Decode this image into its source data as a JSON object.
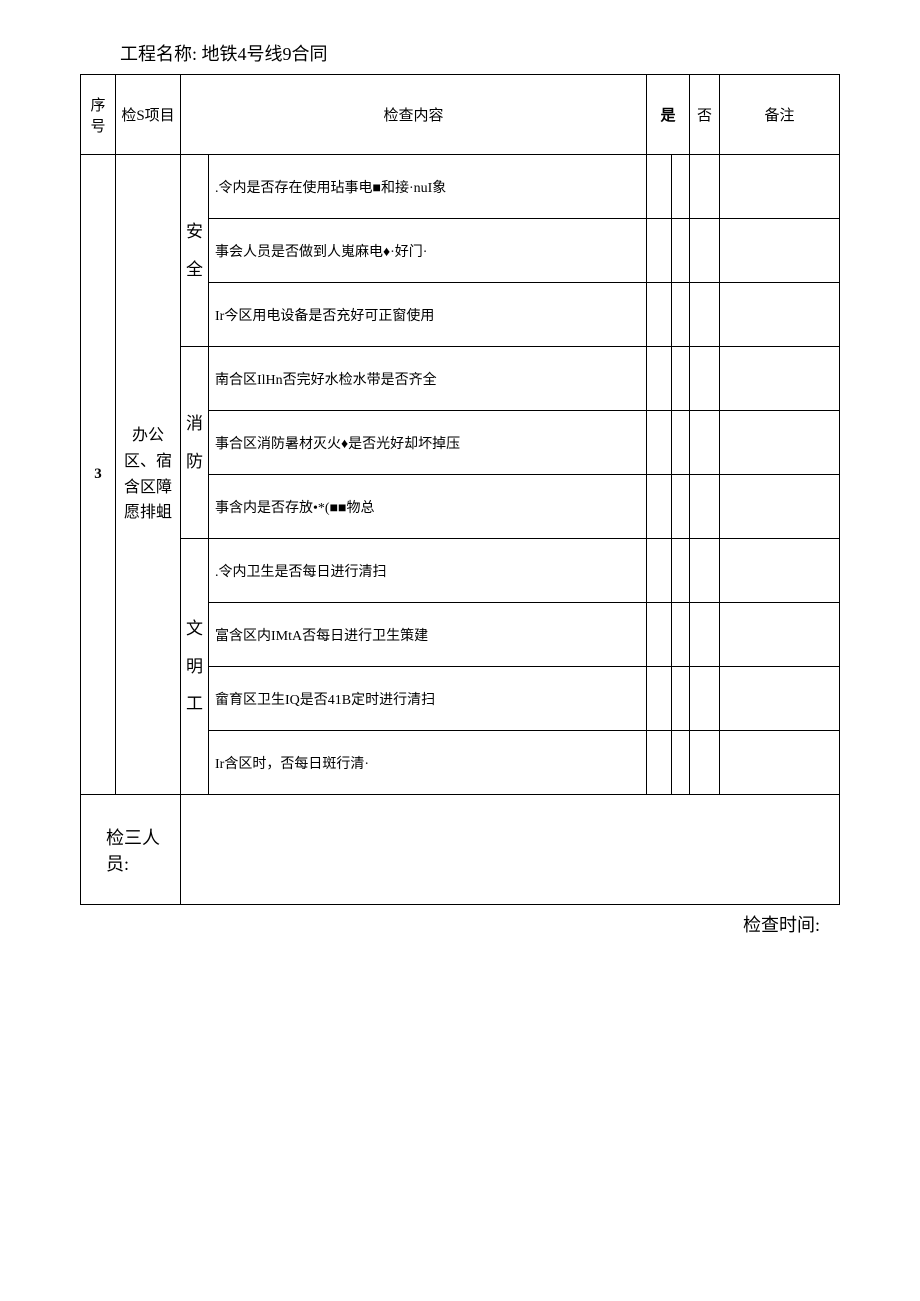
{
  "project": {
    "label": "工程名称:",
    "name": "地铁4号线9合同"
  },
  "headers": {
    "seq": "序号",
    "item": "检S项目",
    "content": "检查内容",
    "yes": "是",
    "no": "否",
    "remark": "备注"
  },
  "row": {
    "seq": "3",
    "item": "办公区、宿含区障愿排蛆"
  },
  "subcats": {
    "safety": "安全",
    "fire": "消防",
    "civil": "文明工"
  },
  "contents": {
    "c1": ".令内是否存在使用玷事电■和接·nuI象",
    "c2": "事会人员是否做到人嵬麻电♦·好门·",
    "c3": "Ir今区用电设备是否充好可正窗使用",
    "c4": "南合区IlHn否完好水检水带是否齐全",
    "c5": "事合区消防暑材灭火♦是否光好却坏掉压",
    "c6": "事含内是否存放•*(■■物总",
    "c7": ".令内卫生是否每日进行清扫",
    "c8": "富含区内IMtA否每日进行卫生策建",
    "c9": "畲育区卫生IQ是否41B定时进行清扫",
    "c10": "Ir含区时，否每日斑行清·"
  },
  "footer": {
    "inspector": "检三人员:",
    "checkTime": "检查时间:"
  },
  "style": {
    "background": "#ffffff",
    "border": "#000000",
    "fontMain": 15,
    "fontHeader": 18
  }
}
